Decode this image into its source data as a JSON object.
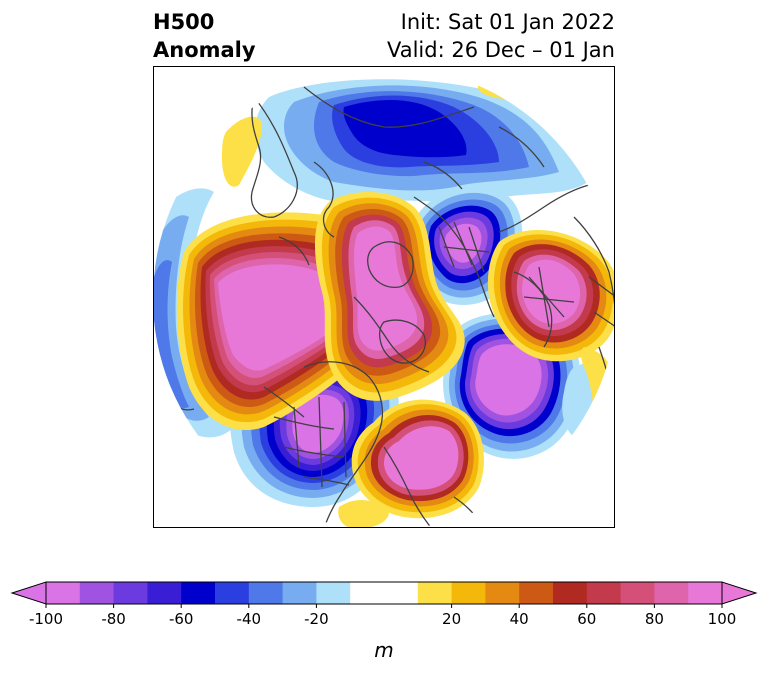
{
  "title": {
    "left_line1": "H500",
    "left_line2": "Anomaly",
    "right_line1": "Init: Sat 01 Jan 2022",
    "right_line2": "Valid: 26 Dec – 01 Jan"
  },
  "colorbar": {
    "unit_label": "m",
    "ticks": [
      "-100",
      "-80",
      "-60",
      "-40",
      "-20",
      "20",
      "40",
      "60",
      "80",
      "100"
    ],
    "tick_values": [
      -100,
      -80,
      -60,
      -40,
      -20,
      20,
      40,
      60,
      80,
      100
    ],
    "min": -100,
    "max": 100,
    "bins": [
      {
        "from": -100,
        "to": -90,
        "color": "#d973e6"
      },
      {
        "from": -90,
        "to": -80,
        "color": "#a052e0"
      },
      {
        "from": -80,
        "to": -70,
        "color": "#6b3be0"
      },
      {
        "from": -70,
        "to": -60,
        "color": "#3a1ed6"
      },
      {
        "from": -60,
        "to": -50,
        "color": "#0000cc"
      },
      {
        "from": -50,
        "to": -40,
        "color": "#2b3fe0"
      },
      {
        "from": -40,
        "to": -30,
        "color": "#4f78e8"
      },
      {
        "from": -30,
        "to": -20,
        "color": "#78acf0"
      },
      {
        "from": -20,
        "to": -10,
        "color": "#aee0fa"
      },
      {
        "from": -10,
        "to": 10,
        "color": "#ffffff"
      },
      {
        "from": 10,
        "to": 20,
        "color": "#fde047"
      },
      {
        "from": 20,
        "to": 30,
        "color": "#f4b80a"
      },
      {
        "from": 30,
        "to": 40,
        "color": "#e48a12"
      },
      {
        "from": 40,
        "to": 50,
        "color": "#cc5a14"
      },
      {
        "from": 50,
        "to": 60,
        "color": "#b02a22"
      },
      {
        "from": 60,
        "to": 70,
        "color": "#c23a4c"
      },
      {
        "from": 70,
        "to": 80,
        "color": "#d45078"
      },
      {
        "from": 80,
        "to": 90,
        "color": "#de65ac"
      },
      {
        "from": 90,
        "to": 100,
        "color": "#e878d8"
      }
    ],
    "extend_low_color": "#d973e6",
    "extend_high_color": "#e878d8"
  },
  "map": {
    "projection": "north-polar-stereographic",
    "field": "500 hPa geopotential height anomaly",
    "land_outline_color": "#404040"
  }
}
